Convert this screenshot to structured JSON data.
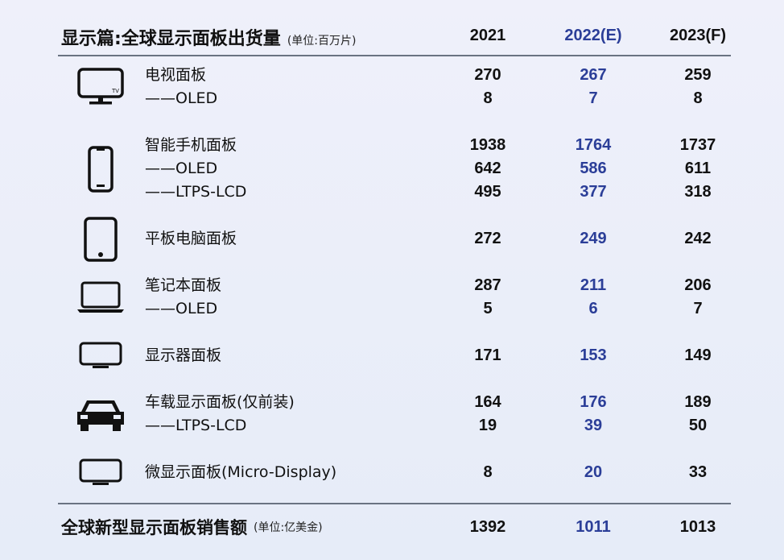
{
  "header": {
    "title": "显示篇:全球显示面板出货量",
    "unit": "(单位:百万片)",
    "years": [
      "2021",
      "2022(E)",
      "2023(F)"
    ]
  },
  "groups": [
    {
      "icon": "tv-icon",
      "rows": [
        {
          "label": "电视面板",
          "values": [
            "270",
            "267",
            "259"
          ]
        },
        {
          "label": "——OLED",
          "values": [
            "8",
            "7",
            "8"
          ]
        }
      ]
    },
    {
      "icon": "smartphone-icon",
      "rows": [
        {
          "label": "智能手机面板",
          "values": [
            "1938",
            "1764",
            "1737"
          ]
        },
        {
          "label": "——OLED",
          "values": [
            "642",
            "586",
            "611"
          ]
        },
        {
          "label": "——LTPS-LCD",
          "values": [
            "495",
            "377",
            "318"
          ]
        }
      ]
    },
    {
      "icon": "tablet-icon",
      "rows": [
        {
          "label": "平板电脑面板",
          "values": [
            "272",
            "249",
            "242"
          ]
        }
      ]
    },
    {
      "icon": "laptop-icon",
      "rows": [
        {
          "label": "笔记本面板",
          "values": [
            "287",
            "211",
            "206"
          ]
        },
        {
          "label": "——OLED",
          "values": [
            "5",
            "6",
            "7"
          ]
        }
      ]
    },
    {
      "icon": "monitor-icon",
      "rows": [
        {
          "label": "显示器面板",
          "values": [
            "171",
            "153",
            "149"
          ]
        }
      ]
    },
    {
      "icon": "car-icon",
      "rows": [
        {
          "label": "车载显示面板(仅前装)",
          "values": [
            "164",
            "176",
            "189"
          ]
        },
        {
          "label": "——LTPS-LCD",
          "values": [
            "19",
            "39",
            "50"
          ]
        }
      ]
    },
    {
      "icon": "micro-display-icon",
      "rows": [
        {
          "label": "微显示面板(Micro-Display)",
          "values": [
            "8",
            "20",
            "33"
          ]
        }
      ]
    }
  ],
  "footer": {
    "title": "全球新型显示面板销售额",
    "unit": "(单位:亿美金)",
    "values": [
      "1392",
      "1011",
      "1013"
    ]
  },
  "colors": {
    "accent": "#2b3e98",
    "text": "#111111"
  },
  "icon_labels": {
    "tv": "TV"
  }
}
